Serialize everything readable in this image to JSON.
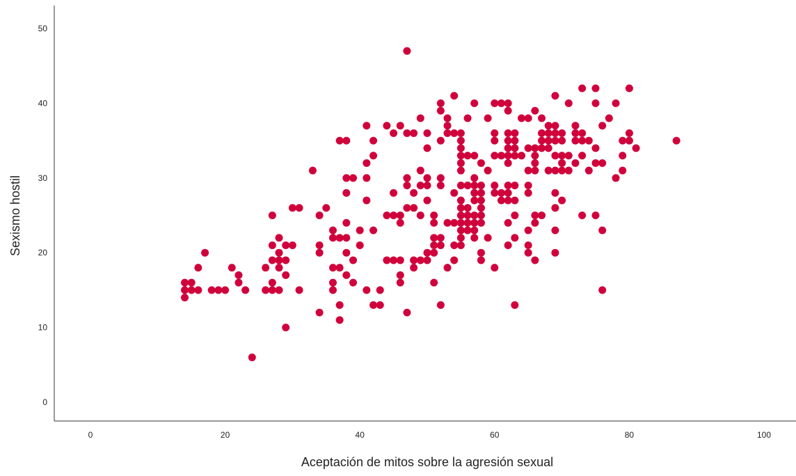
{
  "chart_data": {
    "type": "scatter",
    "title": "",
    "xlabel": "Aceptación de mitos sobre la agresión sexual",
    "ylabel": "Sexismo hostil",
    "xlim": [
      0,
      100
    ],
    "ylim": [
      0,
      50
    ],
    "xticks": [
      "0",
      "20",
      "40",
      "60",
      "80",
      "100"
    ],
    "yticks": [
      "0",
      "10",
      "20",
      "30",
      "40",
      "50"
    ],
    "grid": false,
    "legend": "none",
    "marker_color": "#D0023C",
    "axis_color": "#333333",
    "points": [
      [
        14,
        14
      ],
      [
        14,
        15
      ],
      [
        14,
        16
      ],
      [
        15,
        15
      ],
      [
        15,
        16
      ],
      [
        16,
        15
      ],
      [
        16,
        18
      ],
      [
        17,
        20
      ],
      [
        18,
        15
      ],
      [
        19,
        15
      ],
      [
        20,
        15
      ],
      [
        21,
        18
      ],
      [
        22,
        16
      ],
      [
        22,
        17
      ],
      [
        23,
        15
      ],
      [
        24,
        6
      ],
      [
        26,
        15
      ],
      [
        26,
        18
      ],
      [
        27,
        15
      ],
      [
        27,
        16
      ],
      [
        27,
        19
      ],
      [
        27,
        21
      ],
      [
        27,
        25
      ],
      [
        28,
        15
      ],
      [
        28,
        18
      ],
      [
        28,
        19
      ],
      [
        28,
        20
      ],
      [
        28,
        22
      ],
      [
        29,
        10
      ],
      [
        29,
        17
      ],
      [
        29,
        19
      ],
      [
        29,
        21
      ],
      [
        30,
        21
      ],
      [
        30,
        26
      ],
      [
        31,
        15
      ],
      [
        31,
        26
      ],
      [
        33,
        31
      ],
      [
        34,
        12
      ],
      [
        34,
        20
      ],
      [
        34,
        21
      ],
      [
        34,
        25
      ],
      [
        35,
        26
      ],
      [
        36,
        15
      ],
      [
        36,
        16
      ],
      [
        36,
        18
      ],
      [
        36,
        22
      ],
      [
        36,
        23
      ],
      [
        37,
        11
      ],
      [
        37,
        13
      ],
      [
        37,
        18
      ],
      [
        37,
        22
      ],
      [
        37,
        35
      ],
      [
        38,
        17
      ],
      [
        38,
        20
      ],
      [
        38,
        22
      ],
      [
        38,
        24
      ],
      [
        38,
        28
      ],
      [
        38,
        30
      ],
      [
        38,
        35
      ],
      [
        39,
        16
      ],
      [
        39,
        19
      ],
      [
        39,
        30
      ],
      [
        40,
        21
      ],
      [
        40,
        23
      ],
      [
        41,
        15
      ],
      [
        41,
        27
      ],
      [
        41,
        30
      ],
      [
        41,
        32
      ],
      [
        41,
        37
      ],
      [
        42,
        13
      ],
      [
        42,
        23
      ],
      [
        42,
        33
      ],
      [
        42,
        35
      ],
      [
        43,
        13
      ],
      [
        43,
        15
      ],
      [
        44,
        19
      ],
      [
        44,
        25
      ],
      [
        44,
        37
      ],
      [
        45,
        19
      ],
      [
        45,
        25
      ],
      [
        45,
        28
      ],
      [
        45,
        36
      ],
      [
        46,
        16
      ],
      [
        46,
        17
      ],
      [
        46,
        19
      ],
      [
        46,
        24
      ],
      [
        46,
        25
      ],
      [
        46,
        37
      ],
      [
        47,
        12
      ],
      [
        47,
        26
      ],
      [
        47,
        29
      ],
      [
        47,
        30
      ],
      [
        47,
        36
      ],
      [
        47,
        47
      ],
      [
        48,
        18
      ],
      [
        48,
        19
      ],
      [
        48,
        26
      ],
      [
        48,
        28
      ],
      [
        48,
        36
      ],
      [
        49,
        19
      ],
      [
        49,
        25
      ],
      [
        49,
        29
      ],
      [
        49,
        31
      ],
      [
        49,
        38
      ],
      [
        50,
        19
      ],
      [
        50,
        20
      ],
      [
        50,
        27
      ],
      [
        50,
        29
      ],
      [
        50,
        30
      ],
      [
        50,
        34
      ],
      [
        50,
        36
      ],
      [
        51,
        16
      ],
      [
        51,
        20
      ],
      [
        51,
        21
      ],
      [
        51,
        22
      ],
      [
        51,
        24
      ],
      [
        51,
        25
      ],
      [
        52,
        13
      ],
      [
        52,
        21
      ],
      [
        52,
        22
      ],
      [
        52,
        29
      ],
      [
        52,
        30
      ],
      [
        52,
        35
      ],
      [
        52,
        39
      ],
      [
        52,
        40
      ],
      [
        53,
        18
      ],
      [
        53,
        24
      ],
      [
        53,
        36
      ],
      [
        53,
        37
      ],
      [
        53,
        38
      ],
      [
        54,
        19
      ],
      [
        54,
        21
      ],
      [
        54,
        24
      ],
      [
        54,
        28
      ],
      [
        54,
        36
      ],
      [
        54,
        41
      ],
      [
        55,
        21
      ],
      [
        55,
        22
      ],
      [
        55,
        23
      ],
      [
        55,
        24
      ],
      [
        55,
        25
      ],
      [
        55,
        26
      ],
      [
        55,
        27
      ],
      [
        55,
        29
      ],
      [
        55,
        31
      ],
      [
        55,
        32
      ],
      [
        55,
        33
      ],
      [
        55,
        34
      ],
      [
        55,
        35
      ],
      [
        55,
        36
      ],
      [
        56,
        23
      ],
      [
        56,
        24
      ],
      [
        56,
        25
      ],
      [
        56,
        26
      ],
      [
        56,
        29
      ],
      [
        56,
        33
      ],
      [
        56,
        38
      ],
      [
        57,
        22
      ],
      [
        57,
        23
      ],
      [
        57,
        24
      ],
      [
        57,
        25
      ],
      [
        57,
        27
      ],
      [
        57,
        28
      ],
      [
        57,
        29
      ],
      [
        57,
        30
      ],
      [
        57,
        33
      ],
      [
        57,
        40
      ],
      [
        58,
        19
      ],
      [
        58,
        20
      ],
      [
        58,
        24
      ],
      [
        58,
        25
      ],
      [
        58,
        26
      ],
      [
        58,
        27
      ],
      [
        58,
        28
      ],
      [
        58,
        29
      ],
      [
        58,
        32
      ],
      [
        59,
        22
      ],
      [
        59,
        31
      ],
      [
        59,
        38
      ],
      [
        60,
        18
      ],
      [
        60,
        28
      ],
      [
        60,
        29
      ],
      [
        60,
        33
      ],
      [
        60,
        35
      ],
      [
        60,
        36
      ],
      [
        60,
        40
      ],
      [
        61,
        27
      ],
      [
        61,
        28
      ],
      [
        61,
        33
      ],
      [
        61,
        40
      ],
      [
        62,
        21
      ],
      [
        62,
        24
      ],
      [
        62,
        27
      ],
      [
        62,
        28
      ],
      [
        62,
        29
      ],
      [
        62,
        32
      ],
      [
        62,
        33
      ],
      [
        62,
        34
      ],
      [
        62,
        35
      ],
      [
        62,
        36
      ],
      [
        62,
        39
      ],
      [
        62,
        40
      ],
      [
        63,
        13
      ],
      [
        63,
        22
      ],
      [
        63,
        25
      ],
      [
        63,
        27
      ],
      [
        63,
        29
      ],
      [
        63,
        33
      ],
      [
        63,
        34
      ],
      [
        63,
        35
      ],
      [
        63,
        36
      ],
      [
        64,
        33
      ],
      [
        64,
        38
      ],
      [
        65,
        20
      ],
      [
        65,
        21
      ],
      [
        65,
        23
      ],
      [
        65,
        28
      ],
      [
        65,
        29
      ],
      [
        65,
        31
      ],
      [
        65,
        34
      ],
      [
        65,
        38
      ],
      [
        66,
        19
      ],
      [
        66,
        24
      ],
      [
        66,
        25
      ],
      [
        66,
        31
      ],
      [
        66,
        32
      ],
      [
        66,
        33
      ],
      [
        66,
        34
      ],
      [
        66,
        39
      ],
      [
        67,
        25
      ],
      [
        67,
        34
      ],
      [
        67,
        35
      ],
      [
        67,
        36
      ],
      [
        67,
        38
      ],
      [
        68,
        31
      ],
      [
        68,
        34
      ],
      [
        68,
        35
      ],
      [
        68,
        36
      ],
      [
        68,
        37
      ],
      [
        69,
        20
      ],
      [
        69,
        23
      ],
      [
        69,
        26
      ],
      [
        69,
        28
      ],
      [
        69,
        31
      ],
      [
        69,
        33
      ],
      [
        69,
        35
      ],
      [
        69,
        36
      ],
      [
        69,
        37
      ],
      [
        69,
        41
      ],
      [
        70,
        27
      ],
      [
        70,
        31
      ],
      [
        70,
        32
      ],
      [
        70,
        33
      ],
      [
        70,
        35
      ],
      [
        70,
        36
      ],
      [
        71,
        31
      ],
      [
        71,
        33
      ],
      [
        71,
        40
      ],
      [
        72,
        32
      ],
      [
        72,
        35
      ],
      [
        72,
        36
      ],
      [
        72,
        37
      ],
      [
        73,
        25
      ],
      [
        73,
        33
      ],
      [
        73,
        35
      ],
      [
        73,
        36
      ],
      [
        73,
        42
      ],
      [
        74,
        31
      ],
      [
        74,
        35
      ],
      [
        75,
        25
      ],
      [
        75,
        32
      ],
      [
        75,
        34
      ],
      [
        75,
        40
      ],
      [
        75,
        42
      ],
      [
        76,
        15
      ],
      [
        76,
        23
      ],
      [
        76,
        32
      ],
      [
        76,
        37
      ],
      [
        77,
        38
      ],
      [
        78,
        30
      ],
      [
        78,
        40
      ],
      [
        79,
        31
      ],
      [
        79,
        33
      ],
      [
        79,
        35
      ],
      [
        80,
        35
      ],
      [
        80,
        36
      ],
      [
        80,
        42
      ],
      [
        81,
        34
      ],
      [
        87,
        35
      ]
    ]
  }
}
